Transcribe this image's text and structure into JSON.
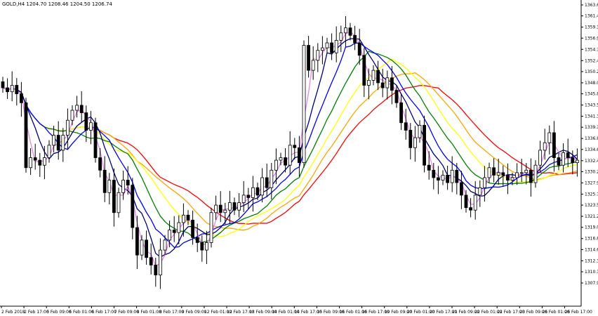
{
  "chart_data": {
    "type": "candlestick",
    "title": "GOLD,H4  1204.70 1208.46 1204.50 1206.74",
    "xlabel": "",
    "ylabel": "",
    "ylim": [
      1306.0,
      1364.0
    ],
    "grid": false,
    "y_ticks": [
      "1363.60",
      "1361.40",
      "1359.15",
      "1356.95",
      "1354.70",
      "1352.45",
      "1350.25",
      "1348.00",
      "1345.80",
      "1343.55",
      "1341.30",
      "1339.10",
      "1336.85",
      "1334.65",
      "1332.40",
      "1330.20",
      "1327.95",
      "1325.70",
      "1323.50",
      "1321.25",
      "1319.05",
      "1316.80",
      "1314.60",
      "1312.35",
      "1310.15",
      "1307.90"
    ],
    "x_ticks": [
      "2 Feb 2018",
      "2 Feb 17:00",
      "5 Feb 09:00",
      "6 Feb 01:00",
      "6 Feb 17:00",
      "7 Feb 09:00",
      "8 Feb 01:00",
      "8 Feb 17:00",
      "9 Feb 09:00",
      "12 Feb 01:00",
      "12 Feb 17:00",
      "13 Feb 09:00",
      "14 Feb 01:00",
      "14 Feb 17:00",
      "15 Feb 09:00",
      "16 Feb 01:00",
      "16 Feb 17:00",
      "19 Feb 09:00",
      "20 Feb 01:00",
      "20 Feb 17:00",
      "21 Feb 09:00",
      "22 Feb 01:00",
      "22 Feb 17:00",
      "23 Feb 09:00",
      "26 Feb 01:00",
      "26 Feb 17:00"
    ],
    "candle_closes": [
      1347.0,
      1346.2,
      1347.5,
      1345.8,
      1344.0,
      1331.0,
      1333.0,
      1332.5,
      1331.5,
      1333.0,
      1335.5,
      1337.5,
      1334.5,
      1337.5,
      1340.5,
      1342.5,
      1343.5,
      1342.0,
      1338.5,
      1340.0,
      1333.0,
      1330.5,
      1326.0,
      1328.5,
      1322.0,
      1326.0,
      1328.5,
      1327.5,
      1319.0,
      1313.5,
      1316.5,
      1313.0,
      1311.5,
      1309.5,
      1314.5,
      1316.5,
      1318.5,
      1318.0,
      1320.0,
      1321.5,
      1320.5,
      1317.0,
      1316.0,
      1314.5,
      1316.0,
      1322.0,
      1323.5,
      1322.0,
      1322.5,
      1324.0,
      1322.5,
      1324.0,
      1325.5,
      1325.0,
      1327.0,
      1325.5,
      1329.0,
      1327.0,
      1330.5,
      1332.5,
      1333.0,
      1331.5,
      1335.5,
      1335.0,
      1332.0,
      1355.5,
      1350.5,
      1352.5,
      1354.5,
      1355.0,
      1356.0,
      1354.0,
      1356.5,
      1358.0,
      1359.0,
      1357.5,
      1356.0,
      1353.5,
      1347.5,
      1348.5,
      1350.5,
      1348.0,
      1347.0,
      1349.0,
      1346.5,
      1344.0,
      1340.0,
      1338.5,
      1335.0,
      1337.0,
      1339.5,
      1331.5,
      1330.5,
      1329.0,
      1328.5,
      1329.5,
      1328.0,
      1330.5,
      1328.0,
      1325.5,
      1323.0,
      1322.5,
      1325.5,
      1327.0,
      1329.0,
      1331.0,
      1329.5,
      1330.0,
      1329.5,
      1328.5,
      1329.0,
      1330.0,
      1330.0,
      1330.5,
      1328.0,
      1331.5,
      1334.5,
      1336.0,
      1338.0,
      1333.0,
      1331.5,
      1334.0,
      1333.0,
      1332.0,
      1332.5
    ],
    "colors": {
      "bull_candle": "#ffffff",
      "bear_candle": "#000000",
      "candle_outline": "#000000",
      "ma_red": "#ff0000",
      "ma_orange": "#ffa500",
      "ma_yellow": "#ffff00",
      "ma_green": "#008000",
      "ma_blue": "#0000ff",
      "ma_navy": "#000080",
      "ma_violet": "#ee82ee"
    }
  }
}
